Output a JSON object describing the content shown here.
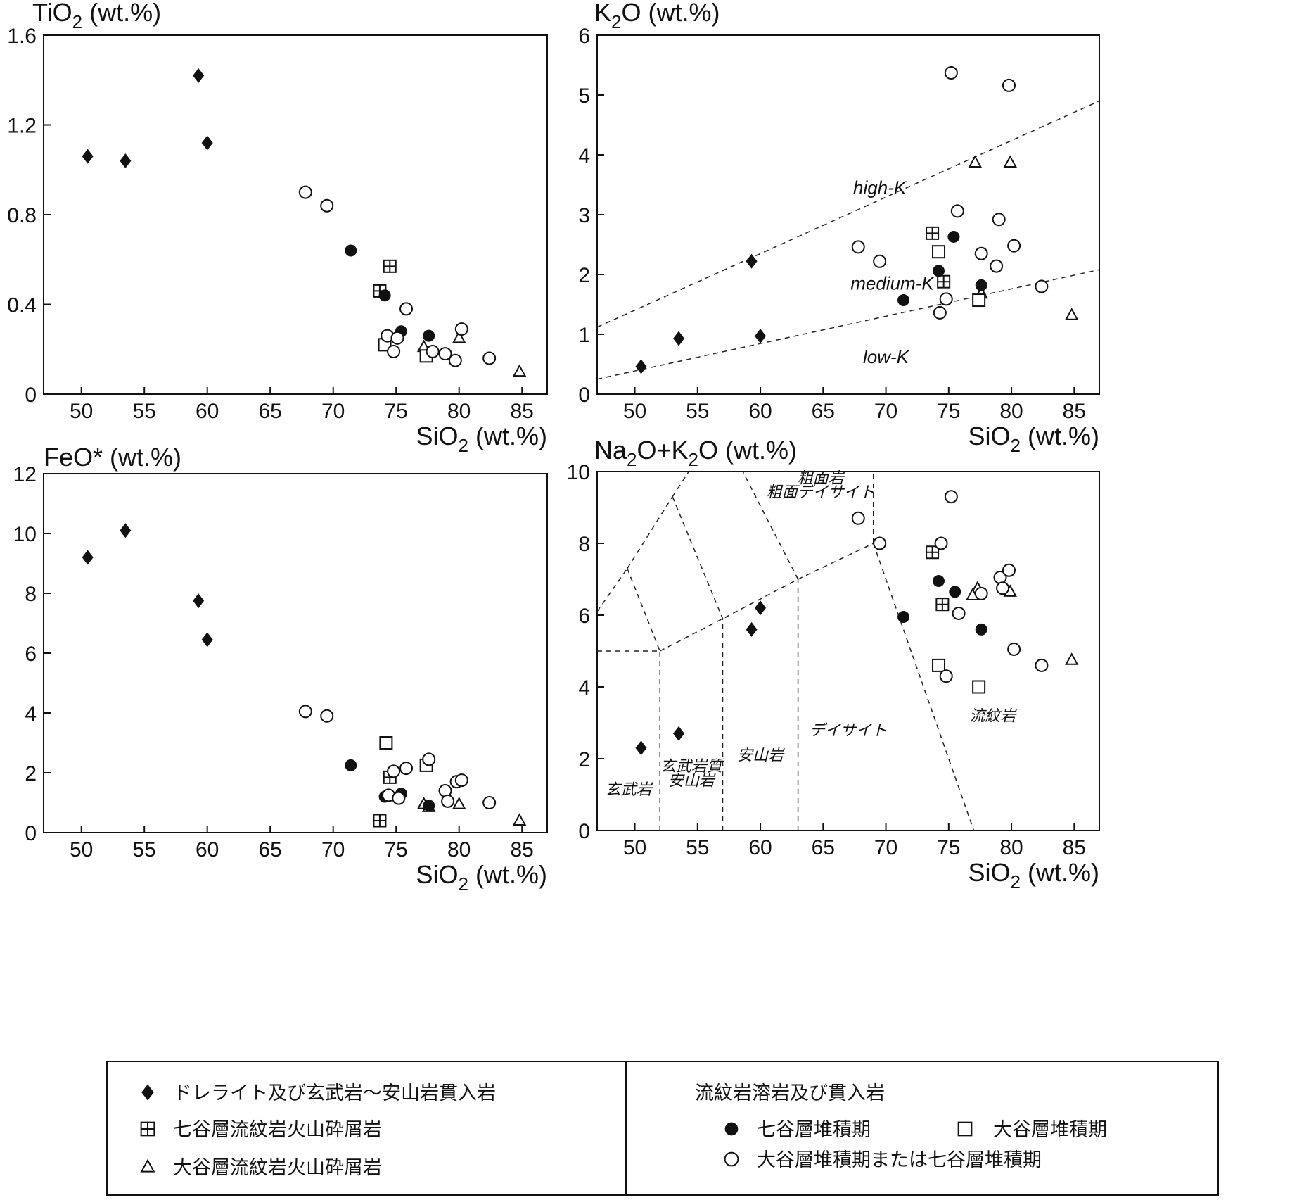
{
  "chart_data": [
    {
      "type": "scatter",
      "title": "",
      "ylabel": "TiO2 (wt.%)",
      "ylabel_main": "TiO",
      "ylabel_sub": "2",
      "ylabel_rest": " (wt.%)",
      "xlabel": "SiO2 (wt.%)",
      "xlim": [
        47,
        87
      ],
      "ylim": [
        0,
        1.6
      ],
      "xticks": [
        50,
        55,
        60,
        65,
        70,
        75,
        80,
        85
      ],
      "yticks": [
        0,
        0.4,
        0.8,
        1.2,
        1.6
      ],
      "ytick_labels": [
        "0",
        "0.4",
        "0.8",
        "1.2",
        "1.6"
      ],
      "series": [
        {
          "name": "ドレライト及び玄武岩～安山岩貫入岩",
          "marker": "diamond",
          "x": [
            50.5,
            53.5,
            59.3,
            60.0
          ],
          "y": [
            1.06,
            1.04,
            1.42,
            1.12
          ]
        },
        {
          "name": "七谷層流紋岩火山砕屑岩",
          "marker": "square-cross",
          "x": [
            74.5,
            73.7
          ],
          "y": [
            0.57,
            0.46
          ]
        },
        {
          "name": "大谷層流紋岩火山砕屑岩",
          "marker": "triangle",
          "x": [
            77.2,
            80.0,
            84.8
          ],
          "y": [
            0.21,
            0.25,
            0.1
          ]
        },
        {
          "name": "七谷層堆積期",
          "marker": "filled-circle",
          "x": [
            71.4,
            74.1,
            75.4,
            77.6
          ],
          "y": [
            0.64,
            0.44,
            0.28,
            0.26
          ]
        },
        {
          "name": "大谷層堆積期",
          "marker": "square",
          "x": [
            74.1,
            77.4
          ],
          "y": [
            0.22,
            0.17
          ]
        },
        {
          "name": "大谷層堆積期または七谷層堆積期",
          "marker": "open-circle",
          "x": [
            67.8,
            69.5,
            75.8,
            74.3,
            75.1,
            74.8,
            78.9,
            79.7,
            80.2,
            82.4,
            77.9
          ],
          "y": [
            0.9,
            0.84,
            0.38,
            0.26,
            0.25,
            0.19,
            0.18,
            0.15,
            0.29,
            0.16,
            0.19
          ]
        }
      ]
    },
    {
      "type": "scatter",
      "title": "",
      "ylabel": "K2O (wt.%)",
      "ylabel_main": "K",
      "ylabel_sub": "2",
      "ylabel_rest": "O (wt.%)",
      "xlabel": "SiO2 (wt.%)",
      "xlim": [
        47,
        87
      ],
      "ylim": [
        0,
        6
      ],
      "xticks": [
        50,
        55,
        60,
        65,
        70,
        75,
        80,
        85
      ],
      "yticks": [
        0,
        1,
        2,
        3,
        4,
        5,
        6
      ],
      "ytick_labels": [
        "0",
        "1",
        "2",
        "3",
        "4",
        "5",
        "6"
      ],
      "fields": {
        "high": "high-K",
        "medium": "medium-K",
        "low": "low-K"
      },
      "boundaries": [
        {
          "x": [
            47,
            87
          ],
          "y": [
            1.12,
            4.9
          ]
        },
        {
          "x": [
            47,
            87
          ],
          "y": [
            0.25,
            2.08
          ]
        }
      ],
      "series": [
        {
          "name": "ドレライト及び玄武岩～安山岩貫入岩",
          "marker": "diamond",
          "x": [
            50.5,
            53.5,
            59.3,
            60.0
          ],
          "y": [
            0.46,
            0.93,
            2.22,
            0.97
          ]
        },
        {
          "name": "七谷層流紋岩火山砕屑岩",
          "marker": "square-cross",
          "x": [
            73.7,
            74.6
          ],
          "y": [
            2.69,
            1.88
          ]
        },
        {
          "name": "大谷層流紋岩火山砕屑岩",
          "marker": "triangle",
          "x": [
            77.1,
            79.9,
            84.8,
            77.6
          ],
          "y": [
            3.87,
            3.87,
            1.32,
            1.68
          ]
        },
        {
          "name": "七谷層堆積期",
          "marker": "filled-circle",
          "x": [
            71.4,
            74.2,
            75.4,
            77.6
          ],
          "y": [
            1.57,
            2.06,
            2.63,
            1.82
          ]
        },
        {
          "name": "大谷層堆積期",
          "marker": "square",
          "x": [
            74.2,
            77.4
          ],
          "y": [
            2.38,
            1.57
          ]
        },
        {
          "name": "大谷層堆積期または七谷層堆積期",
          "marker": "open-circle",
          "x": [
            75.2,
            79.8,
            75.7,
            79.0,
            67.8,
            69.5,
            77.6,
            80.2,
            78.8,
            82.4,
            74.8,
            74.3
          ],
          "y": [
            5.37,
            5.16,
            3.06,
            2.92,
            2.46,
            2.22,
            2.35,
            2.48,
            2.14,
            1.8,
            1.59,
            1.36
          ]
        }
      ]
    },
    {
      "type": "scatter",
      "title": "",
      "ylabel": "FeO* (wt.%)",
      "ylabel_main": "FeO* (wt.%)",
      "ylabel_sub": "",
      "ylabel_rest": "",
      "xlabel": "SiO2 (wt.%)",
      "xlim": [
        47,
        87
      ],
      "ylim": [
        0,
        12
      ],
      "xticks": [
        50,
        55,
        60,
        65,
        70,
        75,
        80,
        85
      ],
      "yticks": [
        0,
        2,
        4,
        6,
        8,
        10,
        12
      ],
      "ytick_labels": [
        "0",
        "2",
        "4",
        "6",
        "8",
        "10",
        "12"
      ],
      "series": [
        {
          "name": "ドレライト及び玄武岩～安山岩貫入岩",
          "marker": "diamond",
          "x": [
            50.5,
            53.5,
            59.3,
            60.0
          ],
          "y": [
            9.2,
            10.1,
            7.75,
            6.45
          ]
        },
        {
          "name": "七谷層流紋岩火山砕屑岩",
          "marker": "square-cross",
          "x": [
            74.5,
            73.7
          ],
          "y": [
            1.85,
            0.4
          ]
        },
        {
          "name": "大谷層流紋岩火山砕屑岩",
          "marker": "triangle",
          "x": [
            77.2,
            77.6,
            80.0,
            84.8
          ],
          "y": [
            0.95,
            0.85,
            0.95,
            0.4
          ]
        },
        {
          "name": "七谷層堆積期",
          "marker": "filled-circle",
          "x": [
            71.4,
            74.1,
            75.4,
            77.6
          ],
          "y": [
            2.25,
            1.2,
            1.3,
            0.9
          ]
        },
        {
          "name": "大谷層堆積期",
          "marker": "square",
          "x": [
            74.2,
            77.4
          ],
          "y": [
            3.0,
            2.25
          ]
        },
        {
          "name": "大谷層堆積期または七谷層堆積期",
          "marker": "open-circle",
          "x": [
            67.8,
            69.5,
            77.6,
            75.8,
            74.8,
            74.4,
            75.2,
            78.9,
            79.8,
            80.2,
            79.1,
            82.4
          ],
          "y": [
            4.05,
            3.9,
            2.45,
            2.15,
            2.05,
            1.25,
            1.15,
            1.4,
            1.7,
            1.75,
            1.05,
            1.0
          ]
        }
      ]
    },
    {
      "type": "scatter",
      "title": "",
      "ylabel": "Na2O+K2O (wt.%)",
      "ylabel_main": "Na",
      "ylabel_sub": "2",
      "ylabel_mid": "O+K",
      "ylabel_sub2": "2",
      "ylabel_rest": "O (wt.%)",
      "xlabel": "SiO2 (wt.%)",
      "xlim": [
        47,
        87
      ],
      "ylim": [
        0,
        10
      ],
      "xticks": [
        50,
        55,
        60,
        65,
        70,
        75,
        80,
        85
      ],
      "yticks": [
        0,
        2,
        4,
        6,
        8,
        10
      ],
      "ytick_labels": [
        "0",
        "2",
        "4",
        "6",
        "8",
        "10"
      ],
      "fields": {
        "trachyte_1": "粗面岩",
        "trachyte_2": "粗面デイサイト",
        "basalt": "玄武岩",
        "basaltic_andesite_1": "玄武岩質",
        "basaltic_andesite_2": "安山岩",
        "andesite": "安山岩",
        "dacite": "デイサイト",
        "rhyolite": "流紋岩"
      },
      "boundaries": [
        {
          "x": [
            52,
            52
          ],
          "y": [
            0,
            5
          ]
        },
        {
          "x": [
            57,
            57
          ],
          "y": [
            0,
            5.9
          ]
        },
        {
          "x": [
            63,
            63
          ],
          "y": [
            0,
            7
          ]
        },
        {
          "x": [
            52,
            57,
            63,
            69
          ],
          "y": [
            5,
            5.9,
            7,
            8
          ]
        },
        {
          "x": [
            47,
            52
          ],
          "y": [
            5,
            5
          ]
        },
        {
          "x": [
            49.4,
            52
          ],
          "y": [
            7.3,
            5
          ]
        },
        {
          "x": [
            49.4,
            53
          ],
          "y": [
            7.3,
            9.3
          ]
        },
        {
          "x": [
            47,
            49.4
          ],
          "y": [
            6.1,
            7.3
          ]
        },
        {
          "x": [
            53,
            57
          ],
          "y": [
            9.3,
            5.9
          ]
        },
        {
          "x": [
            53,
            54.3
          ],
          "y": [
            9.3,
            10
          ]
        },
        {
          "x": [
            63,
            58.6
          ],
          "y": [
            7,
            10
          ]
        },
        {
          "x": [
            69,
            69
          ],
          "y": [
            8,
            10
          ]
        },
        {
          "x": [
            69,
            77
          ],
          "y": [
            8,
            0
          ]
        }
      ],
      "series": [
        {
          "name": "ドレライト及び玄武岩～安山岩貫入岩",
          "marker": "diamond",
          "x": [
            50.5,
            53.5,
            59.3,
            60.0
          ],
          "y": [
            2.3,
            2.7,
            5.6,
            6.2
          ]
        },
        {
          "name": "七谷層流紋岩火山砕屑岩",
          "marker": "square-cross",
          "x": [
            73.7,
            74.5
          ],
          "y": [
            7.75,
            6.3
          ]
        },
        {
          "name": "大谷層流紋岩火山砕屑岩",
          "marker": "triangle",
          "x": [
            77.3,
            76.9,
            79.9,
            84.8
          ],
          "y": [
            6.75,
            6.55,
            6.65,
            4.75
          ]
        },
        {
          "name": "七谷層堆積期",
          "marker": "filled-circle",
          "x": [
            71.4,
            74.2,
            75.5,
            77.6
          ],
          "y": [
            5.95,
            6.95,
            6.65,
            5.6
          ]
        },
        {
          "name": "大谷層堆積期",
          "marker": "square",
          "x": [
            74.2,
            77.4
          ],
          "y": [
            4.6,
            4.0
          ]
        },
        {
          "name": "大谷層堆積期または七谷層堆積期",
          "marker": "open-circle",
          "x": [
            75.2,
            67.8,
            69.5,
            74.4,
            79.1,
            79.8,
            79.3,
            77.6,
            75.8,
            80.2,
            82.4,
            74.8
          ],
          "y": [
            9.3,
            8.7,
            8.0,
            8.0,
            7.05,
            7.25,
            6.75,
            6.6,
            6.05,
            5.05,
            4.6,
            4.3
          ]
        }
      ]
    }
  ],
  "legend": {
    "left": [
      {
        "marker": "diamond",
        "label": "ドレライト及び玄武岩～安山岩貫入岩"
      },
      {
        "marker": "square-cross",
        "label": "七谷層流紋岩火山砕屑岩"
      },
      {
        "marker": "triangle",
        "label": "大谷層流紋岩火山砕屑岩"
      }
    ],
    "right_heading": "流紋岩溶岩及び貫入岩",
    "right": [
      {
        "marker": "filled-circle",
        "label": "七谷層堆積期"
      },
      {
        "marker": "square",
        "label": "大谷層堆積期"
      },
      {
        "marker": "open-circle",
        "label": "大谷層堆積期または七谷層堆積期"
      }
    ]
  }
}
